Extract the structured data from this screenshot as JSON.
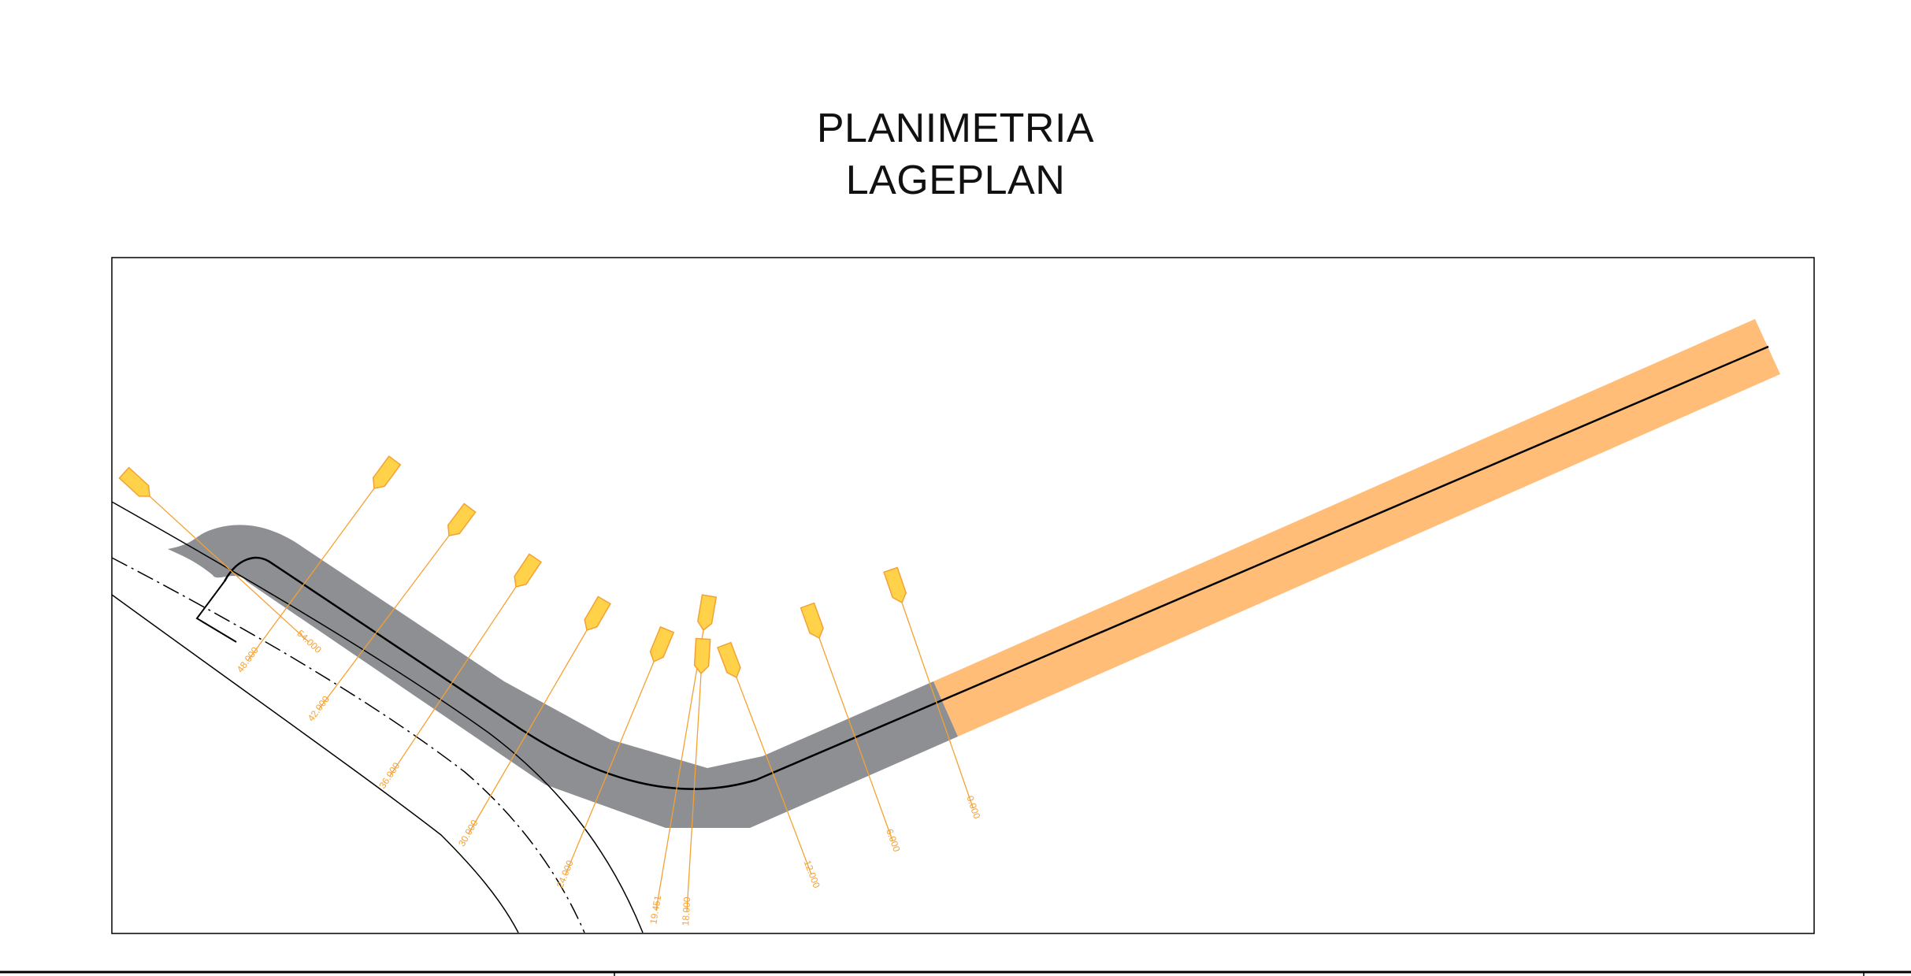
{
  "title": {
    "line1": "PLANIMETRIA",
    "line2": "LAGEPLAN"
  },
  "colors": {
    "background": "#ffffff",
    "frame": "#000000",
    "road_surface": "#8e8f93",
    "extension_band": "#ffbd78",
    "station_marker": "#f5a132",
    "marker_fill": "#ffd24a",
    "lines": "#000000"
  },
  "stations": [
    {
      "label": "54.000",
      "shown": true
    },
    {
      "label": "48.000",
      "shown": true
    },
    {
      "label": "42.000",
      "shown": true
    },
    {
      "label": "36.000",
      "shown": true
    },
    {
      "label": "30.000",
      "shown": true
    },
    {
      "label": "24.000",
      "shown": true
    },
    {
      "label": "19.451",
      "shown": true
    },
    {
      "label": "18.000",
      "shown": true
    },
    {
      "label": "12.000",
      "shown": true
    },
    {
      "label": "6.000",
      "shown": true
    },
    {
      "label": "0.000",
      "shown": true
    }
  ],
  "icons": {
    "station_flag": "station-flag-icon"
  }
}
